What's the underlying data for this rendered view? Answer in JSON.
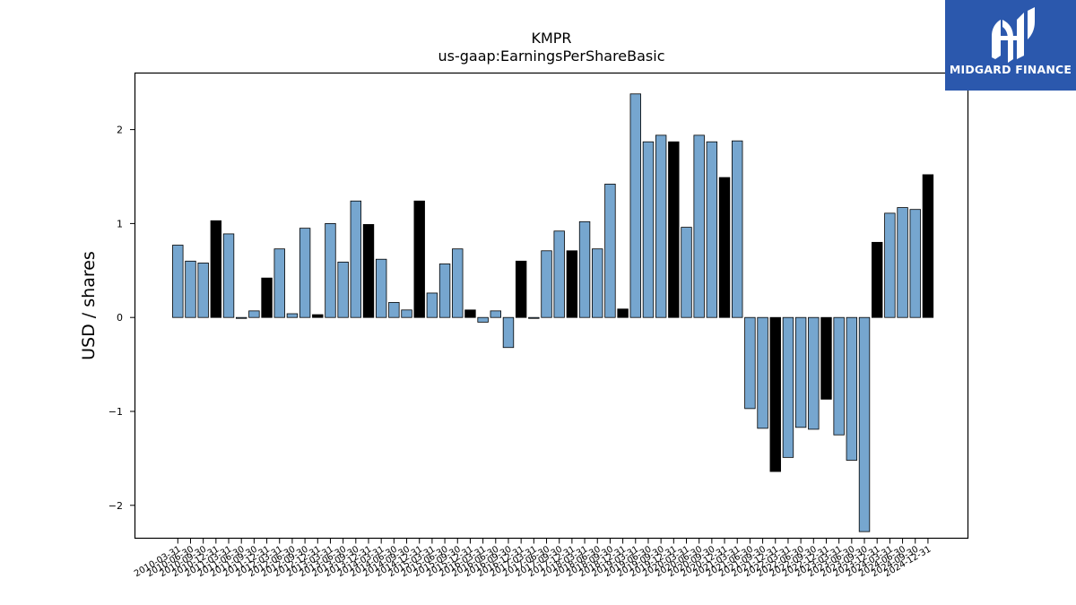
{
  "chart_data": {
    "type": "bar",
    "title": "KMPR",
    "subtitle": "us-gaap:EarningsPerShareBasic",
    "xlabel": "",
    "ylabel": "USD / shares",
    "ylim": [
      -2.35,
      2.6
    ],
    "yticks": [
      -2,
      -1,
      0,
      1,
      2
    ],
    "ytick_labels": [
      "−2",
      "−1",
      "0",
      "1",
      "2"
    ],
    "grid": false,
    "colors": {
      "quarter": "#76a6cf",
      "annual": "#000000",
      "edge": "#000000"
    },
    "categories": [
      "2010-03-31",
      "2010-06-30",
      "2010-09-30",
      "2010-12-31",
      "2011-03-31",
      "2011-06-30",
      "2011-09-30",
      "2011-12-31",
      "2012-03-31",
      "2012-06-30",
      "2012-09-30",
      "2012-12-31",
      "2013-03-31",
      "2013-06-30",
      "2013-09-30",
      "2013-12-31",
      "2014-03-31",
      "2014-06-30",
      "2014-09-30",
      "2014-12-31",
      "2015-03-31",
      "2015-06-30",
      "2015-09-30",
      "2015-12-31",
      "2016-03-31",
      "2016-06-30",
      "2016-09-30",
      "2016-12-31",
      "2017-03-31",
      "2017-06-30",
      "2017-09-30",
      "2017-12-31",
      "2018-03-31",
      "2018-06-30",
      "2018-09-30",
      "2018-12-31",
      "2019-03-31",
      "2019-06-30",
      "2019-09-30",
      "2019-12-31",
      "2020-03-31",
      "2020-06-30",
      "2020-09-30",
      "2020-12-31",
      "2021-03-31",
      "2021-06-30",
      "2021-09-30",
      "2021-12-31",
      "2022-03-31",
      "2022-06-30",
      "2022-09-30",
      "2022-12-31",
      "2023-03-31",
      "2023-06-30",
      "2023-09-30",
      "2023-12-31",
      "2024-03-31",
      "2024-06-30",
      "2024-09-30",
      "2024-12-31"
    ],
    "values": [
      0.77,
      0.6,
      0.58,
      1.03,
      0.89,
      -0.01,
      0.07,
      0.42,
      0.73,
      0.04,
      0.95,
      0.03,
      1.0,
      0.59,
      1.24,
      0.99,
      0.62,
      0.16,
      0.08,
      1.24,
      0.26,
      0.57,
      0.73,
      0.08,
      -0.05,
      0.07,
      -0.32,
      0.6,
      -0.01,
      0.71,
      0.92,
      0.71,
      1.02,
      0.73,
      1.42,
      0.09,
      2.38,
      1.87,
      1.94,
      1.87,
      0.96,
      1.94,
      1.87,
      1.49,
      1.88,
      -0.97,
      -1.18,
      -1.64,
      -1.49,
      -1.17,
      -1.19,
      -0.87,
      -1.25,
      -1.52,
      -2.28,
      0.8,
      1.11,
      1.17,
      1.15,
      1.52
    ],
    "annual": [
      false,
      false,
      false,
      true,
      false,
      false,
      false,
      true,
      false,
      false,
      false,
      true,
      false,
      false,
      false,
      true,
      false,
      false,
      false,
      true,
      false,
      false,
      false,
      true,
      false,
      false,
      false,
      true,
      false,
      false,
      false,
      true,
      false,
      false,
      false,
      true,
      false,
      false,
      false,
      true,
      false,
      false,
      false,
      true,
      false,
      false,
      false,
      true,
      false,
      false,
      false,
      true,
      false,
      false,
      false,
      true,
      false,
      false,
      false,
      true
    ]
  },
  "logo": {
    "text": "MIDGARD FINANCE",
    "color": "#2b58ad"
  }
}
